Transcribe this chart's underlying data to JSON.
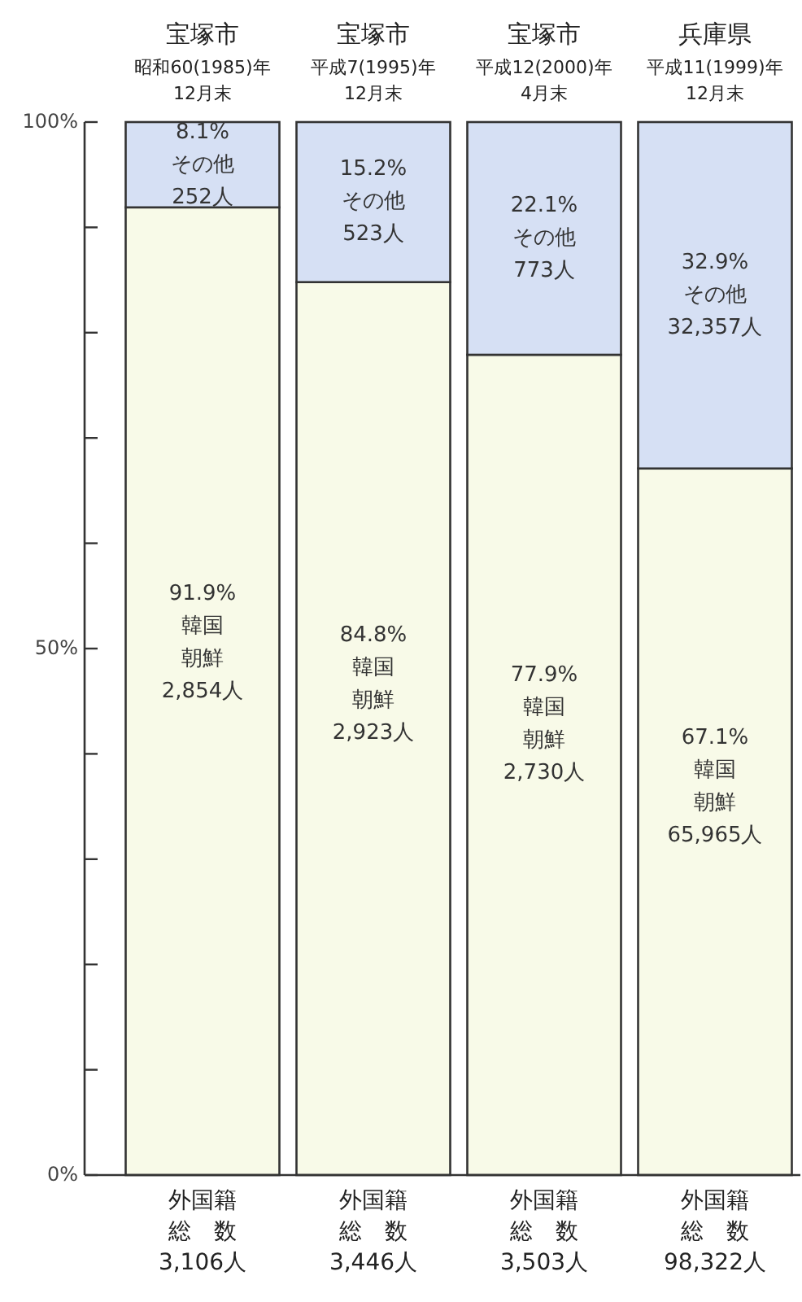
{
  "chart_data": {
    "type": "bar",
    "stacked": true,
    "categories": [
      "宝塚市昭和60(1985)年\n12月末",
      "宝塚市平成7(1995)年\n12月末",
      "宝塚市平成12(2000)年\n4月末",
      "兵庫県平成11(1999)年\n12月末"
    ],
    "series": [
      {
        "color": "#f8fae8",
        "values": [
          91.9,
          84.8,
          77.9,
          67.1
        ],
        "value_labels": [
          "91.9%\n韓国朝鮮\n2,854人",
          "84.8%\n韓国朝鮮\n2,923人",
          "77.9%\n韓国朝鮮\n2,730人",
          "67.1%\n韓国朝鮮\n65,965人"
        ]
      },
      {
        "color": "#d6e0f4",
        "values": [
          8.1,
          15.2,
          22.1,
          32.9
        ],
        "value_labels": [
          "8.1%\nその他\n252人",
          "15.2%\nその他\n523人",
          "22.1%\nその他\n773人",
          "32.9%\nその他\n32,357人"
        ]
      }
    ],
    "totals": [
      "外国籍総　数\n3,106人",
      "外国籍総　数\n3,446人",
      "外国籍総　数\n3,503人",
      "外国籍総　数\n98,322人"
    ],
    "ylim": [
      0,
      100
    ],
    "yticks": [
      {
        "value": 0,
        "label": "0%"
      },
      {
        "value": 10,
        "label": null
      },
      {
        "value": 20,
        "label": null
      },
      {
        "value": 30,
        "label": null
      },
      {
        "value": 40,
        "label": null
      },
      {
        "value": 50,
        "label": "50%"
      },
      {
        "value": 60,
        "label": null
      },
      {
        "value": 70,
        "label": null
      },
      {
        "value": 80,
        "label": null
      },
      {
        "value": 90,
        "label": null
      },
      {
        "value": 100,
        "label": "100%"
      }
    ],
    "grid": false
  }
}
